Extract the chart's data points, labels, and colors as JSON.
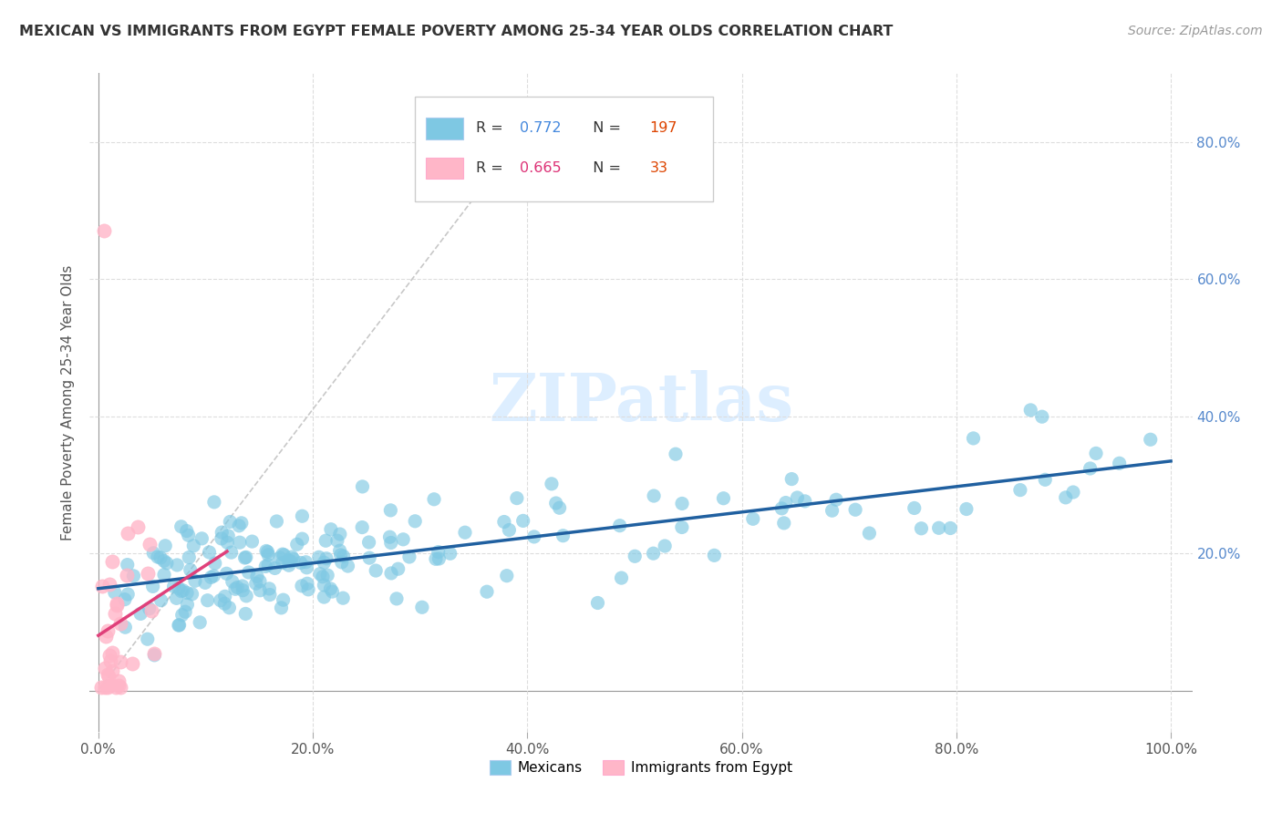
{
  "title": "MEXICAN VS IMMIGRANTS FROM EGYPT FEMALE POVERTY AMONG 25-34 YEAR OLDS CORRELATION CHART",
  "source": "Source: ZipAtlas.com",
  "ylabel": "Female Poverty Among 25-34 Year Olds",
  "xticklabels": [
    "0.0%",
    "20.0%",
    "40.0%",
    "60.0%",
    "80.0%",
    "100.0%"
  ],
  "yticklabels_right": [
    "20.0%",
    "40.0%",
    "60.0%",
    "80.0%"
  ],
  "mexican_R": 0.772,
  "mexican_N": 197,
  "egypt_R": 0.665,
  "egypt_N": 33,
  "mexican_color": "#7ec8e3",
  "egypt_color": "#ffb6c8",
  "mexican_line_color": "#2060a0",
  "egypt_line_color": "#e0407a",
  "diagonal_color": "#c8c8c8",
  "right_tick_color": "#5588cc",
  "bottom_tick_color": "#5588cc",
  "watermark_color": "#ddeeff",
  "legend_R_mex_color": "#4488dd",
  "legend_N_mex_color": "#dd4400",
  "legend_R_egy_color": "#dd3377",
  "legend_N_egy_color": "#dd4400"
}
